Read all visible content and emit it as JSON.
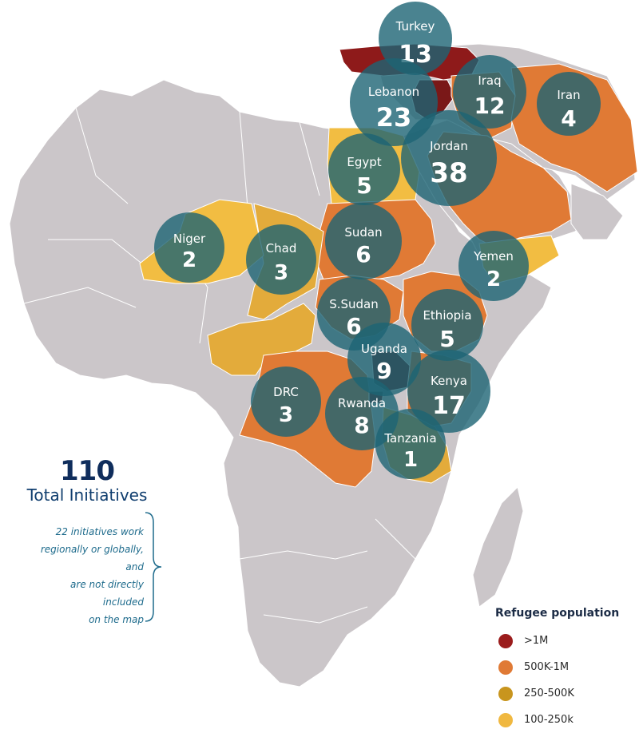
{
  "colors": {
    "land": "#cbc6c9",
    "border": "#ffffff",
    "over_1m": "#8e1a1a",
    "500k_1m": "#e07a35",
    "250_500k": "#c8951e",
    "100_250k": "#f2bd42",
    "bubble": "#1d6474"
  },
  "total": {
    "count": "110",
    "label": "Total Initiatives",
    "note_lines": [
      "22 initiatives work",
      "regionally or globally, and",
      "are not directly included",
      "on the map"
    ]
  },
  "legend": {
    "title": "Refugee population",
    "items": [
      {
        "label": ">1M",
        "color": "#9b1c1c"
      },
      {
        "label": "500K-1M",
        "color": "#e07a35"
      },
      {
        "label": "250-500K",
        "color": "#c8951e"
      },
      {
        "label": "100-250k",
        "color": "#f0b840"
      }
    ]
  },
  "countries": [
    {
      "name": "Turkey",
      "count": "13"
    },
    {
      "name": "Lebanon",
      "count": "23"
    },
    {
      "name": "Iraq",
      "count": "12"
    },
    {
      "name": "Iran",
      "count": "4"
    },
    {
      "name": "Jordan",
      "count": "38"
    },
    {
      "name": "Egypt",
      "count": "5"
    },
    {
      "name": "Niger",
      "count": "2"
    },
    {
      "name": "Chad",
      "count": "3"
    },
    {
      "name": "Sudan",
      "count": "6"
    },
    {
      "name": "Yemen",
      "count": "2"
    },
    {
      "name": "S.Sudan",
      "count": "6"
    },
    {
      "name": "Ethiopia",
      "count": "5"
    },
    {
      "name": "Uganda",
      "count": "9"
    },
    {
      "name": "Kenya",
      "count": "17"
    },
    {
      "name": "DRC",
      "count": "3"
    },
    {
      "name": "Rwanda",
      "count": "8"
    },
    {
      "name": "Tanzania",
      "count": "1"
    }
  ]
}
